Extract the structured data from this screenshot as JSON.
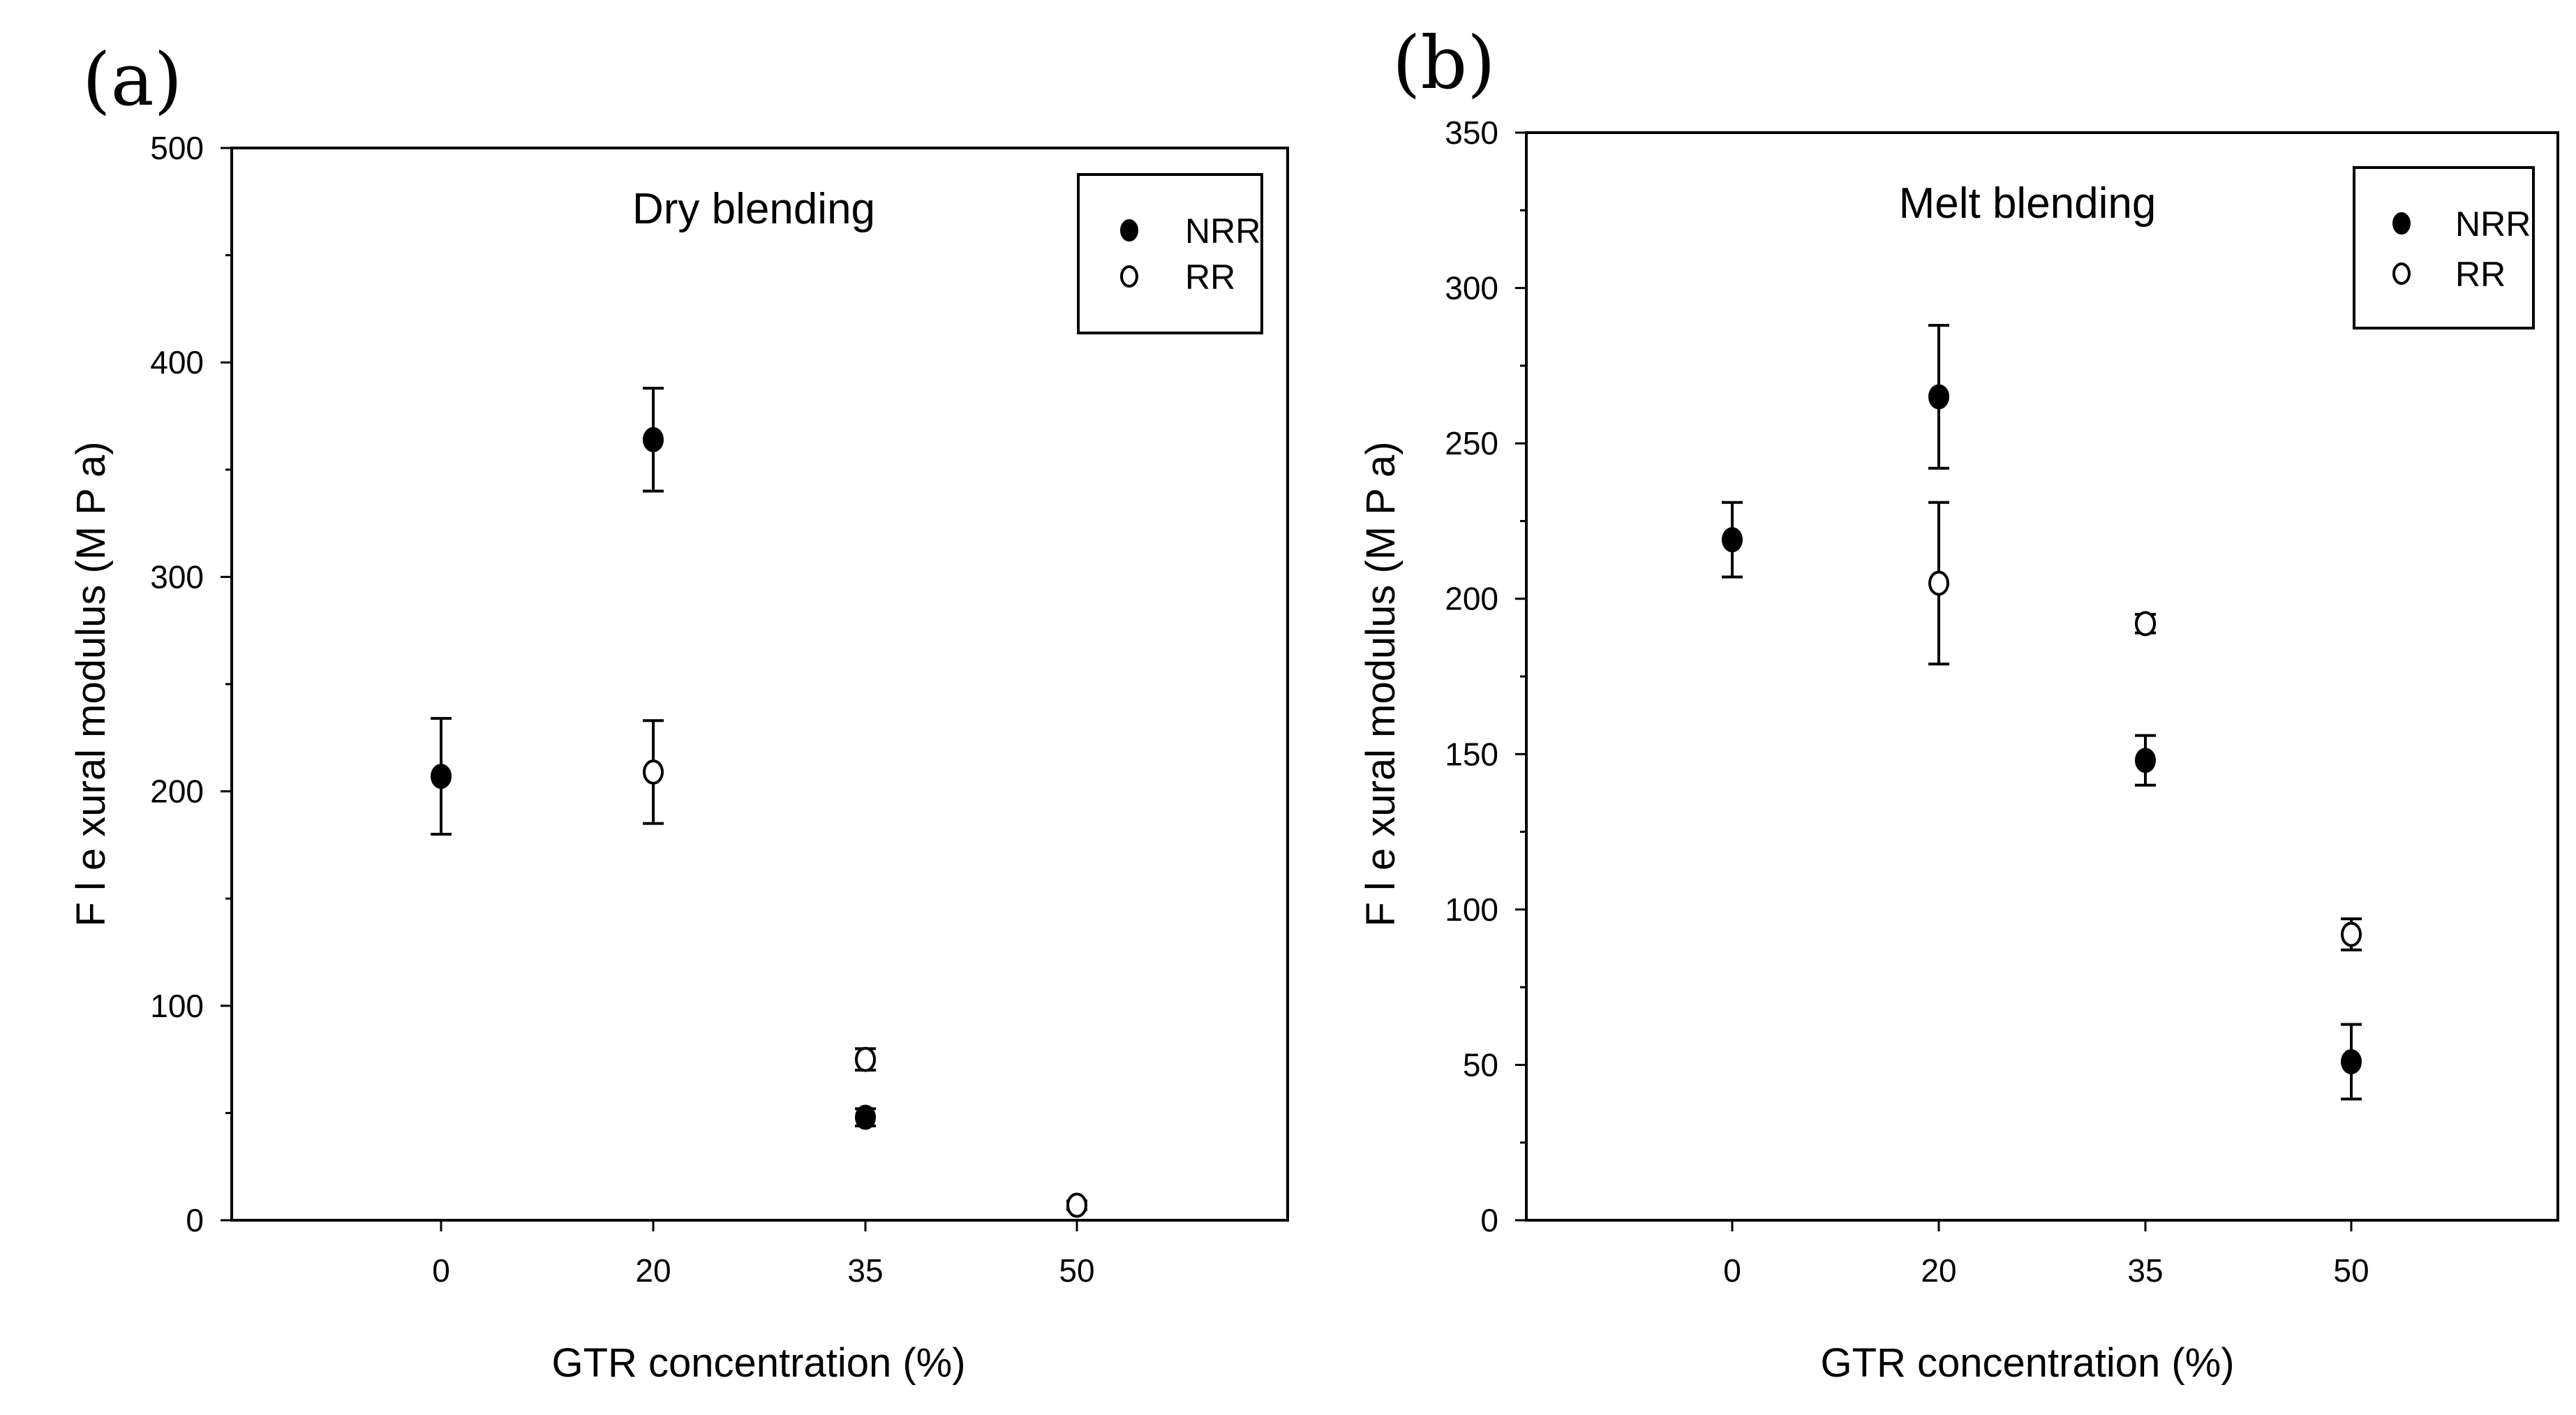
{
  "panels": [
    {
      "letter": "(a)"
    },
    {
      "letter": "(b)"
    }
  ],
  "chart_data": [
    {
      "type": "scatter",
      "title": "Dry blending",
      "xlabel": "GTR concentration (%)",
      "ylabel": "F l e xural modulus (M P a)",
      "ylim": [
        0,
        500
      ],
      "yticks": [
        0,
        100,
        200,
        300,
        400,
        500
      ],
      "categories": [
        "0",
        "20",
        "35",
        "50"
      ],
      "legend": {
        "position": "top-right",
        "entries": [
          "NRR",
          "RR"
        ]
      },
      "series": [
        {
          "name": "NRR",
          "marker": "filled-circle",
          "points": [
            {
              "x": "0",
              "y": 207,
              "err": 27
            },
            {
              "x": "20",
              "y": 364,
              "err": 24
            },
            {
              "x": "35",
              "y": 48,
              "err": 4
            }
          ]
        },
        {
          "name": "RR",
          "marker": "open-circle",
          "points": [
            {
              "x": "20",
              "y": 209,
              "err": 24
            },
            {
              "x": "35",
              "y": 75,
              "err": 5
            },
            {
              "x": "50",
              "y": 7,
              "err": 2
            }
          ]
        }
      ]
    },
    {
      "type": "scatter",
      "title": "Melt blending",
      "xlabel": "GTR concentration (%)",
      "ylabel": "F l e xural modulus (M P a)",
      "ylim": [
        0,
        350
      ],
      "yticks": [
        0,
        50,
        100,
        150,
        200,
        250,
        300,
        350
      ],
      "categories": [
        "0",
        "20",
        "35",
        "50"
      ],
      "legend": {
        "position": "top-right",
        "entries": [
          "NRR",
          "RR"
        ]
      },
      "series": [
        {
          "name": "NRR",
          "marker": "filled-circle",
          "points": [
            {
              "x": "0",
              "y": 219,
              "err": 12
            },
            {
              "x": "20",
              "y": 265,
              "err": 23
            },
            {
              "x": "35",
              "y": 148,
              "err": 8
            },
            {
              "x": "50",
              "y": 51,
              "err": 12
            }
          ]
        },
        {
          "name": "RR",
          "marker": "open-circle",
          "points": [
            {
              "x": "20",
              "y": 205,
              "err": 26
            },
            {
              "x": "35",
              "y": 192,
              "err": 3
            },
            {
              "x": "50",
              "y": 92,
              "err": 5
            }
          ]
        }
      ]
    }
  ]
}
